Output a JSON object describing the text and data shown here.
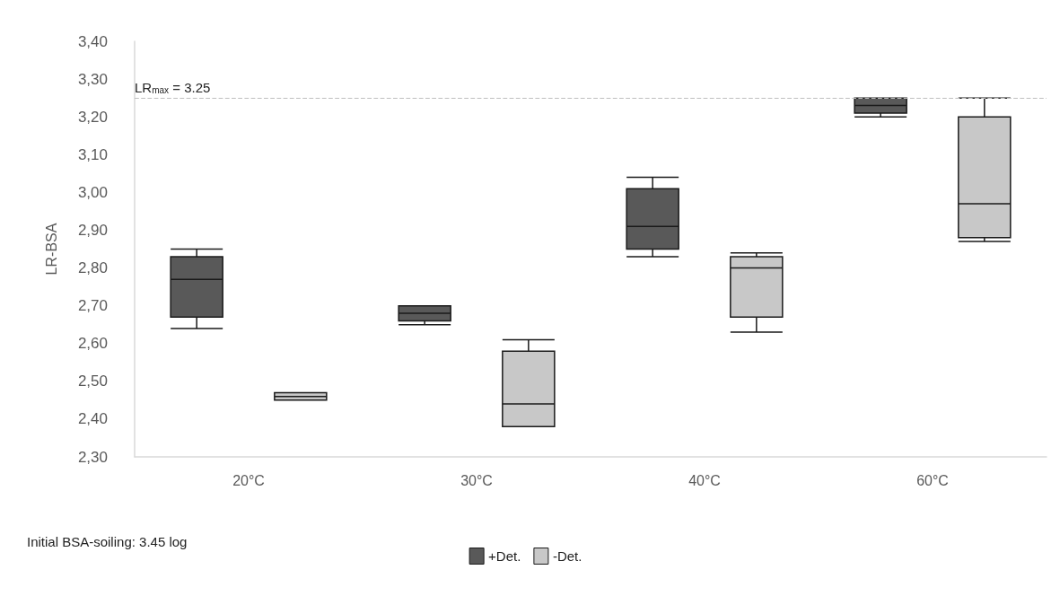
{
  "chart_data": {
    "type": "box",
    "ylabel": "LR-BSA",
    "categories": [
      "20°C",
      "30°C",
      "40°C",
      "60°C"
    ],
    "series": [
      {
        "name": "+Det.",
        "color": "#595959",
        "boxes": [
          {
            "low": 2.64,
            "q1": 2.67,
            "median": 2.77,
            "q3": 2.83,
            "high": 2.85
          },
          {
            "low": 2.65,
            "q1": 2.66,
            "median": 2.68,
            "q3": 2.7,
            "high": 2.7
          },
          {
            "low": 2.83,
            "q1": 2.85,
            "median": 2.91,
            "q3": 3.01,
            "high": 3.04
          },
          {
            "low": 3.2,
            "q1": 3.21,
            "median": 3.23,
            "q3": 3.25,
            "high": 3.25
          }
        ]
      },
      {
        "name": "-Det.",
        "color": "#c8c8c8",
        "boxes": [
          {
            "low": 2.45,
            "q1": 2.45,
            "median": 2.46,
            "q3": 2.47,
            "high": 2.47
          },
          {
            "low": 2.38,
            "q1": 2.38,
            "median": 2.44,
            "q3": 2.58,
            "high": 2.61
          },
          {
            "low": 2.63,
            "q1": 2.67,
            "median": 2.8,
            "q3": 2.83,
            "high": 2.84
          },
          {
            "low": 2.87,
            "q1": 2.88,
            "median": 2.97,
            "q3": 3.2,
            "high": 3.25
          }
        ]
      }
    ],
    "ylim": [
      2.3,
      3.4
    ],
    "yticks": [
      {
        "value": 2.3,
        "label": "2,30"
      },
      {
        "value": 2.4,
        "label": "2,40"
      },
      {
        "value": 2.5,
        "label": "2,50"
      },
      {
        "value": 2.6,
        "label": "2,60"
      },
      {
        "value": 2.7,
        "label": "2,70"
      },
      {
        "value": 2.8,
        "label": "2,80"
      },
      {
        "value": 2.9,
        "label": "2,90"
      },
      {
        "value": 3.0,
        "label": "3,00"
      },
      {
        "value": 3.1,
        "label": "3,10"
      },
      {
        "value": 3.2,
        "label": "3,20"
      },
      {
        "value": 3.3,
        "label": "3,30"
      },
      {
        "value": 3.4,
        "label": "3,40"
      }
    ],
    "ref_lines": [
      {
        "axis": "y",
        "value": 3.25,
        "label": "LR$_{max}$ = 3.25",
        "color": "#bfbfbf",
        "line_style": "dashed"
      }
    ],
    "annotations": [
      "Initial BSA-soiling: 3.45 log"
    ],
    "grid": false,
    "legend": "bottom"
  }
}
